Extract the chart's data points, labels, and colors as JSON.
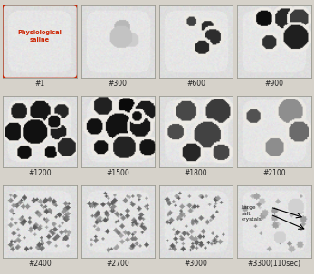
{
  "grid_rows": 3,
  "grid_cols": 4,
  "labels": [
    "#1",
    "#300",
    "#600",
    "#900",
    "#1200",
    "#1500",
    "#1800",
    "#2100",
    "#2400",
    "#2700",
    "#3000",
    "#3300(110sec)"
  ],
  "physiological_saline_text": "Physiological\nsaline",
  "physiological_saline_color": "#cc2200",
  "large_crystals_text": "Large\nsalt\ncrystals",
  "large_crystals_color": "#111111",
  "border_color_first": "#cc2200",
  "label_color": "#222222",
  "label_fontsize": 5.5,
  "figure_bg": "#d6d2ca",
  "cell_bg": "#e0ddd7",
  "cell_inner_bg": "#e8e5de"
}
